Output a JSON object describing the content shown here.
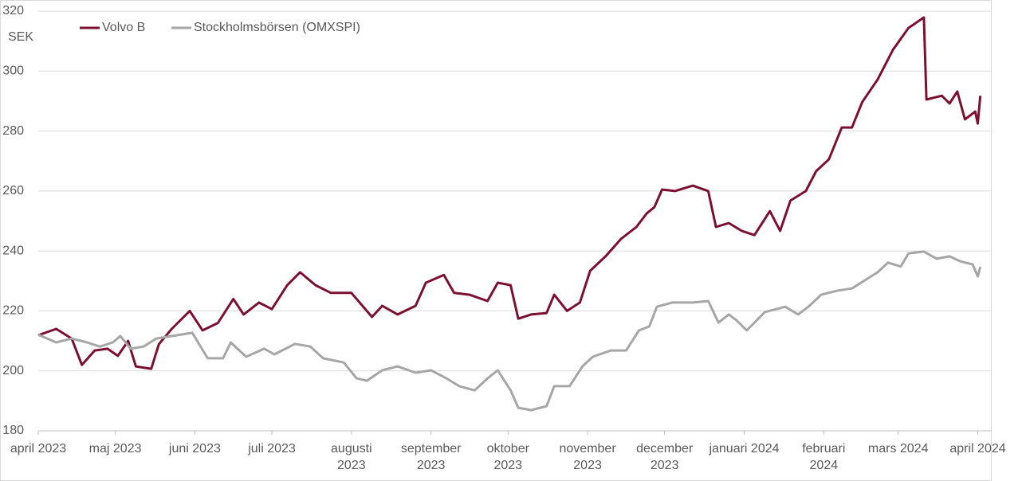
{
  "chart_data": {
    "type": "line",
    "y_unit_label": "SEK",
    "xlim": [
      0,
      370
    ],
    "xticks": [
      {
        "value": 0,
        "label": "april 2023"
      },
      {
        "value": 30,
        "label": "maj 2023"
      },
      {
        "value": 61,
        "label": "juni 2023"
      },
      {
        "value": 91,
        "label": "juli 2023"
      },
      {
        "value": 122,
        "label": "augusti\n2023"
      },
      {
        "value": 153,
        "label": "september\n2023"
      },
      {
        "value": 183,
        "label": "oktober\n2023"
      },
      {
        "value": 214,
        "label": "november\n2023"
      },
      {
        "value": 244,
        "label": "december\n2023"
      },
      {
        "value": 275,
        "label": "januari 2024"
      },
      {
        "value": 306,
        "label": "februari\n2024"
      },
      {
        "value": 335,
        "label": "mars 2024"
      },
      {
        "value": 366,
        "label": "april 2024"
      }
    ],
    "ylim": [
      180,
      320
    ],
    "yticks": [
      180,
      200,
      220,
      240,
      260,
      280,
      300,
      320
    ],
    "grid": true,
    "legend": "top-left",
    "series": [
      {
        "name": "Volvo B",
        "color": "#7b1030",
        "x": [
          0,
          7,
          13,
          17,
          22,
          27,
          31,
          35,
          38,
          44,
          47,
          52,
          59,
          64,
          70,
          76,
          80,
          86,
          91,
          97,
          102,
          108,
          114,
          122,
          130,
          134,
          140,
          147,
          151,
          158,
          162,
          168,
          175,
          179,
          184,
          187,
          192,
          198,
          201,
          206,
          211,
          215,
          221,
          227,
          233,
          237,
          240,
          243,
          248,
          255,
          261,
          264,
          269,
          274,
          279,
          285,
          289,
          293,
          299,
          303,
          308,
          313,
          317,
          321,
          327,
          333,
          339,
          345,
          346,
          352,
          355,
          358,
          361,
          365,
          366,
          367
        ],
        "values": [
          211.9,
          214,
          210.8,
          202,
          206.8,
          207.4,
          205,
          210,
          201.5,
          200.7,
          208.9,
          214,
          220,
          213.5,
          216,
          224,
          218.8,
          222.8,
          220.6,
          228.6,
          232.9,
          228.6,
          226,
          226,
          218,
          221.7,
          218.8,
          221.7,
          229.4,
          232,
          226,
          225.4,
          223.3,
          229.4,
          228.6,
          217.4,
          218.8,
          219.3,
          225.4,
          220,
          222.8,
          233.4,
          238.2,
          244,
          248,
          252.5,
          254.6,
          260.5,
          260,
          261.8,
          260,
          248,
          249.3,
          246.7,
          245.3,
          253.3,
          246.7,
          256.8,
          260,
          266.6,
          270.6,
          281.2,
          281.2,
          289.7,
          297.2,
          307.2,
          314.4,
          317.9,
          290.5,
          291.8,
          289.2,
          293.2,
          283.9,
          286.5,
          282.5,
          291.8
        ]
      },
      {
        "name": "Stockholmsbörsen (OMXSPI)",
        "color": "#a6a6a6",
        "x": [
          0,
          7,
          13,
          19,
          24,
          29,
          32,
          36,
          41,
          46,
          52,
          60,
          66,
          72,
          75,
          81,
          88,
          92,
          100,
          106,
          111,
          119,
          124,
          128,
          134,
          140,
          147,
          153,
          159,
          164,
          170,
          175,
          179,
          184,
          187,
          192,
          198,
          201,
          207,
          212,
          216,
          223,
          229,
          234,
          238,
          241,
          247,
          255,
          261,
          265,
          269,
          272,
          276,
          283,
          291,
          296,
          300,
          305,
          311,
          317,
          322,
          327,
          331,
          336,
          339,
          345,
          350,
          355,
          359,
          364,
          366,
          367
        ],
        "values": [
          212.1,
          209.5,
          210.8,
          209.5,
          208.1,
          209.5,
          211.6,
          207.4,
          208.1,
          210.8,
          211.6,
          212.7,
          204.2,
          204.2,
          209.5,
          204.7,
          207.4,
          205.5,
          209,
          208.1,
          204.2,
          202.8,
          197.5,
          196.7,
          200.2,
          201.5,
          199.4,
          200.2,
          197.5,
          194.9,
          193.5,
          197.5,
          200.2,
          193.5,
          187.7,
          186.9,
          188.2,
          194.9,
          194.9,
          201.5,
          204.7,
          206.8,
          206.8,
          213.5,
          214.8,
          221.4,
          222.8,
          222.8,
          223.3,
          216.1,
          218.8,
          216.9,
          213.5,
          219.6,
          221.4,
          218.8,
          221.4,
          225.4,
          226.7,
          227.5,
          230.2,
          232.9,
          236.1,
          234.8,
          239.2,
          239.8,
          237.4,
          238.2,
          236.6,
          235.5,
          231.5,
          234.7
        ]
      }
    ]
  }
}
